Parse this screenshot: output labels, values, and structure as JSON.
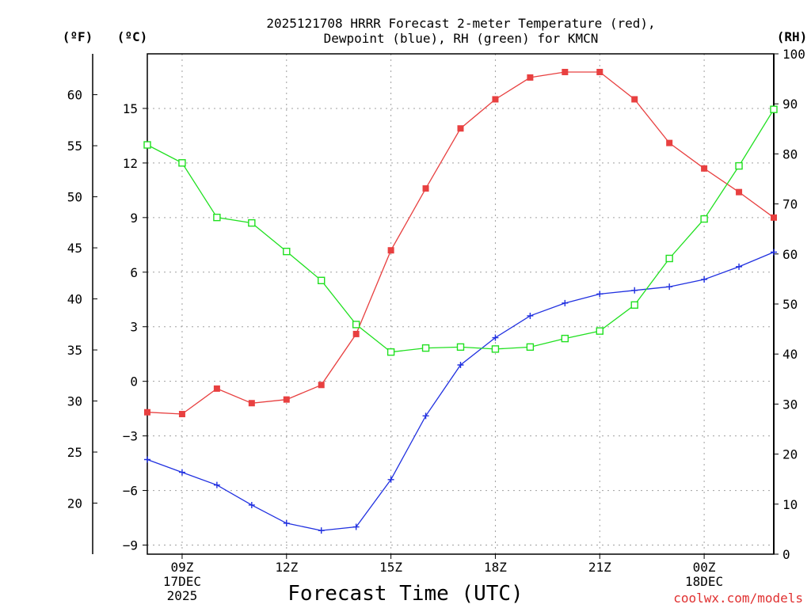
{
  "chart_data": {
    "type": "line",
    "title_lines": [
      "2025121708 HRRR Forecast 2-meter Temperature (red),",
      "Dewpoint (blue), RH (green) for KMCN"
    ],
    "xlabel": "Forecast Time (UTC)",
    "credit": "coolwx.com/models",
    "unit_labels": {
      "fahrenheit": "(ºF)",
      "celsius": "(ºC)",
      "rh": "(RH)"
    },
    "x_range_hours": [
      8,
      26
    ],
    "x_ticks": [
      {
        "hour": 9,
        "lines": [
          "09Z",
          "17DEC",
          "2025"
        ]
      },
      {
        "hour": 12,
        "lines": [
          "12Z"
        ]
      },
      {
        "hour": 15,
        "lines": [
          "15Z"
        ]
      },
      {
        "hour": 18,
        "lines": [
          "18Z"
        ]
      },
      {
        "hour": 21,
        "lines": [
          "21Z"
        ]
      },
      {
        "hour": 24,
        "lines": [
          "00Z",
          "18DEC"
        ]
      }
    ],
    "celsius_axis": {
      "range": [
        -9.5,
        18
      ],
      "ticks": [
        "-9",
        "-6",
        "-3",
        "0",
        "3",
        "6",
        "9",
        "12",
        "15"
      ]
    },
    "fahrenheit_axis": {
      "range": [
        15,
        64
      ],
      "ticks": [
        "20",
        "25",
        "30",
        "35",
        "40",
        "45",
        "50",
        "55",
        "60"
      ]
    },
    "rh_axis": {
      "range": [
        0,
        100
      ],
      "ticks": [
        "0",
        "10",
        "20",
        "30",
        "40",
        "50",
        "60",
        "70",
        "80",
        "90",
        "100"
      ]
    },
    "x_hours": [
      8,
      9,
      10,
      11,
      12,
      13,
      14,
      15,
      16,
      17,
      18,
      19,
      20,
      21,
      22,
      23,
      24,
      25,
      26
    ],
    "series": [
      {
        "name": "Temperature",
        "axis": "celsius",
        "color": "#e84040",
        "marker": "filled-square",
        "values": [
          -1.7,
          -1.8,
          -0.4,
          -1.2,
          -1.0,
          -0.2,
          2.6,
          7.2,
          10.6,
          13.9,
          15.5,
          16.7,
          17.0,
          17.0,
          15.5,
          13.1,
          11.7,
          10.4,
          9.0
        ]
      },
      {
        "name": "Dewpoint",
        "axis": "celsius",
        "color": "#2030e0",
        "marker": "plus",
        "values": [
          -4.3,
          -5.0,
          -5.7,
          -6.8,
          -7.8,
          -8.2,
          -8.0,
          -5.4,
          -1.9,
          0.9,
          2.4,
          3.6,
          4.3,
          4.8,
          5.0,
          5.2,
          5.6,
          6.3,
          7.1
        ]
      },
      {
        "name": "RH",
        "axis": "rh",
        "color": "#20e020",
        "marker": "open-square",
        "values": [
          81.8,
          78.2,
          67.3,
          66.2,
          60.5,
          54.7,
          45.9,
          40.4,
          41.2,
          41.4,
          41.0,
          41.4,
          43.1,
          44.6,
          49.8,
          59.1,
          67.0,
          77.6,
          88.9
        ]
      }
    ]
  }
}
